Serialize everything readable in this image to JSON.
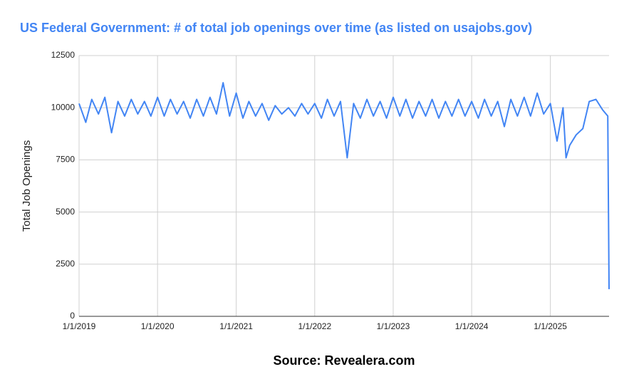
{
  "chart_data": {
    "type": "line",
    "title": "US Federal Government: # of total job openings over time (as listed on usajobs.gov)",
    "y_label": "Total Job Openings",
    "source": "Source: Revealera.com",
    "x": [
      "2019-01-01",
      "2019-02-01",
      "2019-03-01",
      "2019-04-01",
      "2019-05-01",
      "2019-06-01",
      "2019-07-01",
      "2019-08-01",
      "2019-09-01",
      "2019-10-01",
      "2019-11-01",
      "2019-12-01",
      "2020-01-01",
      "2020-02-01",
      "2020-03-01",
      "2020-04-01",
      "2020-05-01",
      "2020-06-01",
      "2020-07-01",
      "2020-08-01",
      "2020-09-01",
      "2020-10-01",
      "2020-11-01",
      "2020-12-01",
      "2021-01-01",
      "2021-02-01",
      "2021-03-01",
      "2021-04-01",
      "2021-05-01",
      "2021-06-01",
      "2021-07-01",
      "2021-08-01",
      "2021-09-01",
      "2021-10-01",
      "2021-11-01",
      "2021-12-01",
      "2022-01-01",
      "2022-02-01",
      "2022-03-01",
      "2022-04-01",
      "2022-05-01",
      "2022-06-01",
      "2022-07-01",
      "2022-08-01",
      "2022-09-01",
      "2022-10-01",
      "2022-11-01",
      "2022-12-01",
      "2023-01-01",
      "2023-02-01",
      "2023-03-01",
      "2023-04-01",
      "2023-05-01",
      "2023-06-01",
      "2023-07-01",
      "2023-08-01",
      "2023-09-01",
      "2023-10-01",
      "2023-11-01",
      "2023-12-01",
      "2024-01-01",
      "2024-02-01",
      "2024-03-01",
      "2024-04-01",
      "2024-05-01",
      "2024-06-01",
      "2024-07-01",
      "2024-08-01",
      "2024-09-01",
      "2024-10-01",
      "2024-11-01",
      "2024-12-01",
      "2025-01-01",
      "2025-02-01",
      "2025-03-01",
      "2025-03-15",
      "2025-04-01",
      "2025-05-01",
      "2025-06-01",
      "2025-07-01",
      "2025-08-01",
      "2025-09-01",
      "2025-09-25",
      "2025-10-01"
    ],
    "series": [
      {
        "name": "Total Job Openings",
        "color": "#4285f4",
        "values": [
          10200,
          9300,
          10400,
          9700,
          10500,
          8800,
          10300,
          9600,
          10400,
          9700,
          10300,
          9600,
          10500,
          9600,
          10400,
          9700,
          10300,
          9500,
          10400,
          9600,
          10500,
          9700,
          11200,
          9600,
          10700,
          9500,
          10300,
          9600,
          10200,
          9400,
          10100,
          9700,
          10000,
          9600,
          10200,
          9700,
          10200,
          9500,
          10400,
          9600,
          10300,
          7600,
          10200,
          9500,
          10400,
          9600,
          10300,
          9500,
          10500,
          9600,
          10400,
          9500,
          10300,
          9600,
          10400,
          9500,
          10300,
          9600,
          10400,
          9600,
          10300,
          9500,
          10400,
          9600,
          10300,
          9100,
          10400,
          9600,
          10500,
          9600,
          10700,
          9700,
          10200,
          8400,
          10000,
          7600,
          8200,
          8700,
          9000,
          10300,
          10400,
          9900,
          9600,
          1300
        ]
      }
    ],
    "xlim": [
      "2019-01-01",
      "2025-10-01"
    ],
    "xticks": [
      {
        "value": "2019-01-01",
        "label": "1/1/2019"
      },
      {
        "value": "2020-01-01",
        "label": "1/1/2020"
      },
      {
        "value": "2021-01-01",
        "label": "1/1/2021"
      },
      {
        "value": "2022-01-01",
        "label": "1/1/2022"
      },
      {
        "value": "2023-01-01",
        "label": "1/1/2023"
      },
      {
        "value": "2024-01-01",
        "label": "1/1/2024"
      },
      {
        "value": "2025-01-01",
        "label": "1/1/2025"
      }
    ],
    "ylim": [
      0,
      12500
    ],
    "yticks": [
      0,
      2500,
      5000,
      7500,
      10000,
      12500
    ],
    "grid": true
  }
}
